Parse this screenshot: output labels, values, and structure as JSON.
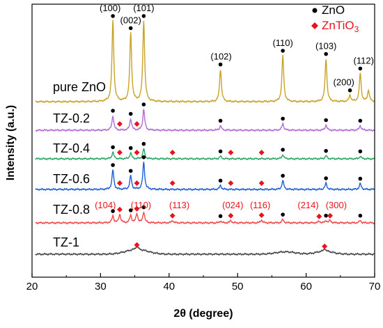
{
  "chart_data": {
    "type": "line",
    "xlabel_prefix": "2",
    "xlabel_symbol": "θ",
    "xlabel_suffix": " (degree)",
    "ylabel": "Intensity (a.u.)",
    "xlim": [
      20,
      70
    ],
    "x_ticks": [
      "20",
      "30",
      "40",
      "50",
      "60",
      "70"
    ],
    "legend": {
      "placement": "top-right",
      "entries": [
        {
          "marker": "circle",
          "color": "#000000",
          "label": "ZnO",
          "sub": ""
        },
        {
          "marker": "diamond",
          "color": "#e8141c",
          "label": "ZnTiO",
          "sub": "3"
        }
      ]
    },
    "series": [
      {
        "name": "pure ZnO",
        "color": "#c9a227",
        "peaks": [
          [
            31.8,
            1.0
          ],
          [
            34.4,
            0.85
          ],
          [
            36.3,
            1.0
          ],
          [
            47.5,
            0.4
          ],
          [
            56.6,
            0.57
          ],
          [
            62.9,
            0.53
          ],
          [
            66.4,
            0.08
          ],
          [
            67.9,
            0.35
          ],
          [
            69.1,
            0.14
          ]
        ],
        "zno_markers": [
          31.8,
          34.4,
          36.3,
          47.5,
          56.6,
          62.9,
          66.4,
          67.9
        ],
        "znt_markers": [],
        "labels": [
          {
            "text": "(100)",
            "x": 31.4,
            "color": "#000000",
            "peak": 31.8
          },
          {
            "text": "(002)",
            "x": 34.4,
            "color": "#000000",
            "peak": 34.4
          },
          {
            "text": "(101)",
            "x": 36.3,
            "color": "#000000",
            "peak": 36.3
          },
          {
            "text": "(102)",
            "x": 47.6,
            "color": "#000000",
            "peak": 47.5
          },
          {
            "text": "(110)",
            "x": 56.6,
            "color": "#000000",
            "peak": 56.6
          },
          {
            "text": "(103)",
            "x": 62.9,
            "color": "#000000",
            "peak": 62.9
          },
          {
            "text": "(200)",
            "x": 65.5,
            "color": "#000000",
            "peak": 66.4
          },
          {
            "text": "(112)",
            "x": 68.4,
            "color": "#000000",
            "peak": 67.9
          }
        ]
      },
      {
        "name": "TZ-0.2",
        "color": "#b06bd6",
        "peaks": [
          [
            31.8,
            0.7
          ],
          [
            34.4,
            0.55
          ],
          [
            36.3,
            1.0
          ],
          [
            47.5,
            0.22
          ],
          [
            56.6,
            0.32
          ],
          [
            62.9,
            0.25
          ],
          [
            67.9,
            0.22
          ]
        ],
        "zno_markers": [
          31.8,
          34.4,
          36.3,
          47.5,
          56.6,
          62.9,
          67.9
        ],
        "znt_markers": [
          32.8,
          35.3
        ],
        "labels": []
      },
      {
        "name": "TZ-0.4",
        "color": "#2aa566",
        "peaks": [
          [
            31.8,
            0.4
          ],
          [
            34.4,
            0.35
          ],
          [
            36.3,
            0.6
          ],
          [
            47.5,
            0.15
          ],
          [
            56.6,
            0.25
          ],
          [
            62.9,
            0.18
          ],
          [
            67.9,
            0.15
          ]
        ],
        "zno_markers": [
          31.8,
          34.4,
          36.3,
          47.5,
          56.6,
          62.9,
          67.9
        ],
        "znt_markers": [
          32.8,
          35.3,
          40.5,
          49.0,
          53.5
        ],
        "labels": []
      },
      {
        "name": "TZ-0.6",
        "color": "#1c5fd6",
        "peaks": [
          [
            31.8,
            1.0
          ],
          [
            34.4,
            0.7
          ],
          [
            36.3,
            1.4
          ],
          [
            47.5,
            0.2
          ],
          [
            56.6,
            0.45
          ],
          [
            62.9,
            0.32
          ],
          [
            67.9,
            0.3
          ]
        ],
        "zno_markers": [
          31.8,
          34.4,
          36.3,
          47.5,
          56.6,
          62.9,
          67.9
        ],
        "znt_markers": [
          32.8,
          35.3,
          40.5,
          49.0,
          53.5
        ],
        "labels": []
      },
      {
        "name": "TZ-0.8",
        "color": "#f04848",
        "peaks": [
          [
            31.8,
            0.45
          ],
          [
            32.8,
            0.55
          ],
          [
            34.4,
            0.5
          ],
          [
            35.3,
            0.6
          ],
          [
            36.3,
            0.7
          ],
          [
            40.5,
            0.15
          ],
          [
            47.5,
            0.12
          ],
          [
            49.0,
            0.15
          ],
          [
            53.5,
            0.18
          ],
          [
            56.6,
            0.22
          ],
          [
            61.9,
            0.1
          ],
          [
            62.9,
            0.15
          ],
          [
            63.5,
            0.15
          ],
          [
            67.9,
            0.15
          ]
        ],
        "zno_markers": [
          31.8,
          34.4,
          36.3,
          47.5,
          56.6,
          62.9,
          67.9
        ],
        "znt_markers": [
          32.8,
          35.3,
          40.5,
          49.0,
          53.5,
          61.9,
          63.5
        ],
        "labels": [
          {
            "text": "(104)",
            "x": 30.7,
            "color": "#e8141c",
            "peak": 32.8
          },
          {
            "text": "(110)",
            "x": 35.9,
            "color": "#e8141c",
            "peak": 35.3
          },
          {
            "text": "(113)",
            "x": 41.5,
            "color": "#e8141c",
            "peak": 40.5
          },
          {
            "text": "(024)",
            "x": 49.3,
            "color": "#e8141c",
            "peak": 49.0
          },
          {
            "text": "(116)",
            "x": 53.3,
            "color": "#e8141c",
            "peak": 53.5
          },
          {
            "text": "(214)",
            "x": 60.3,
            "color": "#e8141c",
            "peak": 61.9
          },
          {
            "text": "(300)",
            "x": 64.4,
            "color": "#e8141c",
            "peak": 63.5
          }
        ]
      },
      {
        "name": "TZ-1",
        "color": "#444444",
        "peaks": [
          [
            35.3,
            0.15
          ],
          [
            62.7,
            0.1
          ]
        ],
        "zno_markers": [],
        "znt_markers": [
          35.3,
          62.7
        ],
        "labels": []
      }
    ]
  }
}
